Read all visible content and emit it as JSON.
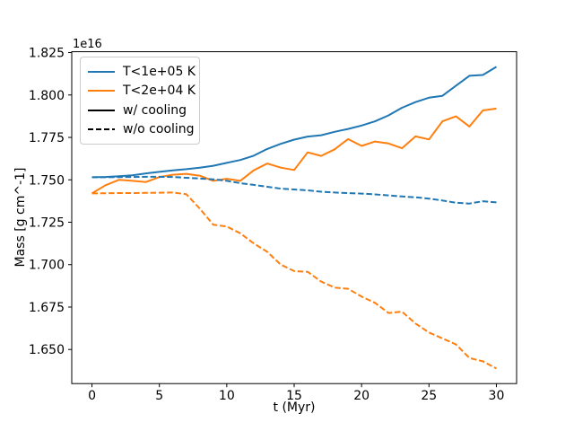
{
  "figure": {
    "background": "#ffffff",
    "accent_blue": "#1f77b4",
    "accent_orange": "#ff7f0e"
  },
  "chart_data": {
    "type": "line",
    "title": "",
    "xlabel": "t (Myr)",
    "ylabel": "Mass [g cm^-1]",
    "y_offset_text": "1e16",
    "xlim": [
      -1.5,
      31.5
    ],
    "ylim": [
      1.6299,
      1.8255
    ],
    "xticks": [
      0,
      5,
      10,
      15,
      20,
      25,
      30
    ],
    "yticks": [
      1.65,
      1.675,
      1.7,
      1.725,
      1.75,
      1.775,
      1.8,
      1.825
    ],
    "grid": false,
    "x": [
      0,
      1,
      2,
      3,
      4,
      5,
      6,
      7,
      8,
      9,
      10,
      11,
      12,
      13,
      14,
      15,
      16,
      17,
      18,
      19,
      20,
      21,
      22,
      23,
      24,
      25,
      26,
      27,
      28,
      29,
      30
    ],
    "units_note": "mass values in units of 1e16 g cm^-1",
    "series": [
      {
        "name": "T<1e+05 K w/ cooling",
        "temperature": "T<1e+05 K",
        "variant": "w/ cooling",
        "color": "#1f77b4",
        "style": "solid",
        "values": [
          1.7515,
          1.7517,
          1.7521,
          1.7527,
          1.7538,
          1.7547,
          1.7556,
          1.7563,
          1.7572,
          1.7583,
          1.76,
          1.7617,
          1.7642,
          1.7682,
          1.7712,
          1.7737,
          1.7755,
          1.7763,
          1.7783,
          1.78,
          1.782,
          1.7845,
          1.788,
          1.7925,
          1.7958,
          1.7984,
          1.7995,
          1.8055,
          1.8113,
          1.8118,
          1.8166
        ]
      },
      {
        "name": "T<2e+04 K w/ cooling",
        "temperature": "T<2e+04 K",
        "variant": "w/ cooling",
        "color": "#ff7f0e",
        "style": "solid",
        "values": [
          1.742,
          1.7468,
          1.75,
          1.7494,
          1.7487,
          1.7516,
          1.753,
          1.7535,
          1.7524,
          1.7494,
          1.7506,
          1.7494,
          1.7556,
          1.7596,
          1.7572,
          1.7558,
          1.7662,
          1.7641,
          1.768,
          1.774,
          1.77,
          1.7726,
          1.7714,
          1.7686,
          1.7756,
          1.7738,
          1.7845,
          1.7874,
          1.7814,
          1.7909,
          1.792
        ]
      },
      {
        "name": "T<1e+05 K w/o cooling",
        "temperature": "T<1e+05 K",
        "variant": "w/o cooling",
        "color": "#1f77b4",
        "style": "dashed",
        "values": [
          1.7515,
          1.7515,
          1.7516,
          1.7517,
          1.7518,
          1.7518,
          1.7517,
          1.7512,
          1.7508,
          1.7503,
          1.7494,
          1.748,
          1.747,
          1.7459,
          1.7448,
          1.7443,
          1.7438,
          1.743,
          1.7425,
          1.7422,
          1.7419,
          1.7414,
          1.7408,
          1.7402,
          1.7397,
          1.7389,
          1.7378,
          1.7365,
          1.736,
          1.7374,
          1.7367
        ]
      },
      {
        "name": "T<2e+04 K w/o cooling",
        "temperature": "T<2e+04 K",
        "variant": "w/o cooling",
        "color": "#ff7f0e",
        "style": "dashed",
        "values": [
          1.742,
          1.7421,
          1.7422,
          1.7422,
          1.7423,
          1.7424,
          1.7425,
          1.7415,
          1.733,
          1.7235,
          1.7225,
          1.7185,
          1.7125,
          1.7076,
          1.7,
          1.6962,
          1.6958,
          1.69,
          1.6865,
          1.6858,
          1.6812,
          1.6775,
          1.6715,
          1.6723,
          1.6653,
          1.66,
          1.6565,
          1.653,
          1.645,
          1.643,
          1.6388
        ]
      }
    ],
    "legend": {
      "position": "upper left",
      "entries": [
        {
          "label": "T<1e+05 K",
          "color": "#1f77b4",
          "style": "solid"
        },
        {
          "label": "T<2e+04 K",
          "color": "#ff7f0e",
          "style": "solid"
        },
        {
          "label": "w/ cooling",
          "color": "#000000",
          "style": "solid"
        },
        {
          "label": "w/o cooling",
          "color": "#000000",
          "style": "dashed"
        }
      ]
    }
  }
}
